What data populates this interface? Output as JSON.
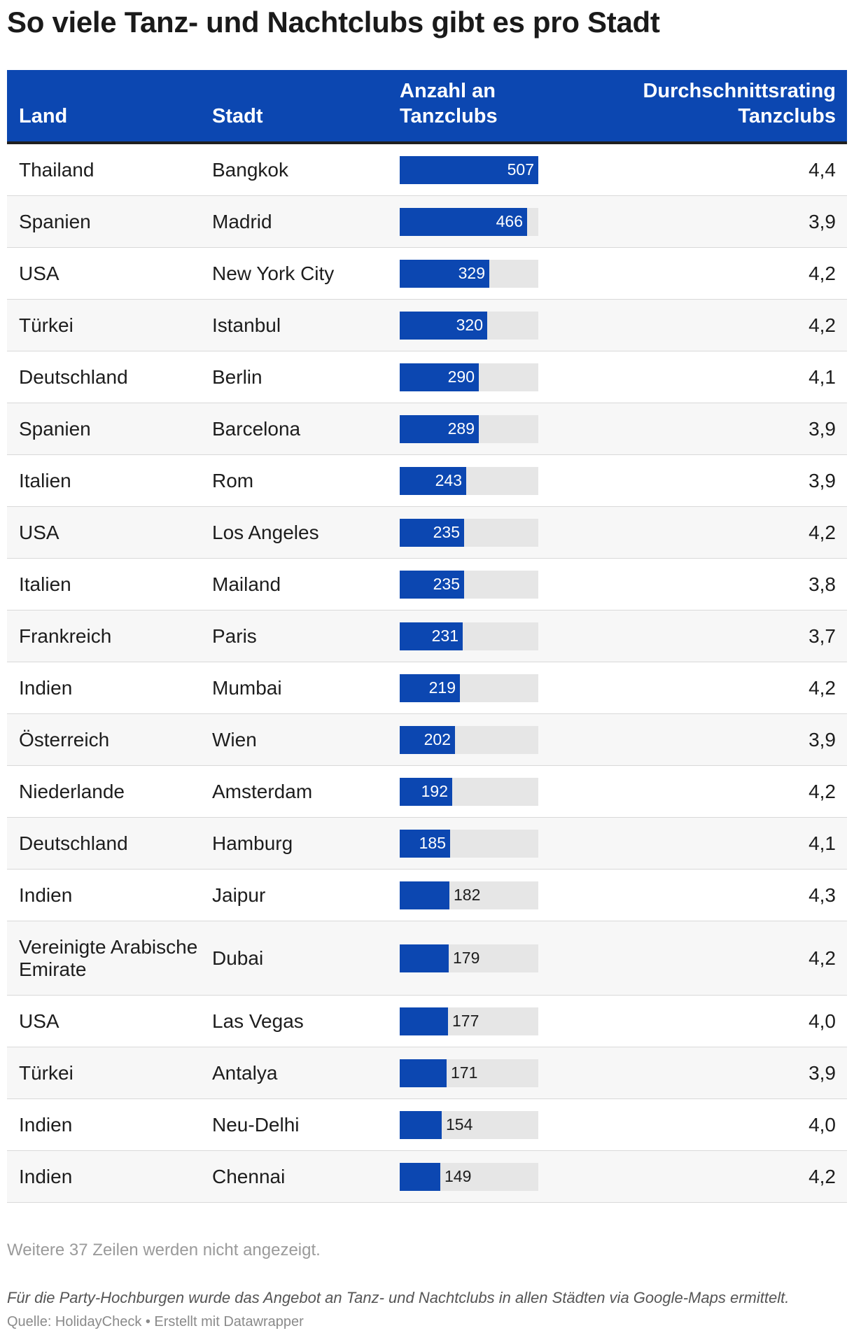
{
  "title": "So viele Tanz- und Nachtclubs gibt es pro Stadt",
  "header": {
    "land": "Land",
    "stadt": "Stadt",
    "anzahl_line1": "Anzahl an",
    "anzahl_line2": "Tanzclubs",
    "rating_line1": "Durchschnittsrating",
    "rating_line2": "Tanzclubs"
  },
  "colors": {
    "bar": "#0c47b1",
    "bar_track": "#e6e6e6",
    "header_bg": "#0c47b1"
  },
  "chart_data": {
    "type": "table",
    "bar_column": "Anzahl an Tanzclubs",
    "bar_max": 507,
    "rows": [
      {
        "land": "Thailand",
        "stadt": "Bangkok",
        "anzahl": 507,
        "rating": "4,4"
      },
      {
        "land": "Spanien",
        "stadt": "Madrid",
        "anzahl": 466,
        "rating": "3,9"
      },
      {
        "land": "USA",
        "stadt": "New York City",
        "anzahl": 329,
        "rating": "4,2"
      },
      {
        "land": "Türkei",
        "stadt": "Istanbul",
        "anzahl": 320,
        "rating": "4,2"
      },
      {
        "land": "Deutschland",
        "stadt": "Berlin",
        "anzahl": 290,
        "rating": "4,1"
      },
      {
        "land": "Spanien",
        "stadt": "Barcelona",
        "anzahl": 289,
        "rating": "3,9"
      },
      {
        "land": "Italien",
        "stadt": "Rom",
        "anzahl": 243,
        "rating": "3,9"
      },
      {
        "land": "USA",
        "stadt": "Los Angeles",
        "anzahl": 235,
        "rating": "4,2"
      },
      {
        "land": "Italien",
        "stadt": "Mailand",
        "anzahl": 235,
        "rating": "3,8"
      },
      {
        "land": "Frankreich",
        "stadt": "Paris",
        "anzahl": 231,
        "rating": "3,7"
      },
      {
        "land": "Indien",
        "stadt": "Mumbai",
        "anzahl": 219,
        "rating": "4,2"
      },
      {
        "land": "Österreich",
        "stadt": "Wien",
        "anzahl": 202,
        "rating": "3,9"
      },
      {
        "land": "Niederlande",
        "stadt": "Amsterdam",
        "anzahl": 192,
        "rating": "4,2"
      },
      {
        "land": "Deutschland",
        "stadt": "Hamburg",
        "anzahl": 185,
        "rating": "4,1"
      },
      {
        "land": "Indien",
        "stadt": "Jaipur",
        "anzahl": 182,
        "rating": "4,3"
      },
      {
        "land": "Vereinigte Arabische Emirate",
        "stadt": "Dubai",
        "anzahl": 179,
        "rating": "4,2"
      },
      {
        "land": "USA",
        "stadt": "Las Vegas",
        "anzahl": 177,
        "rating": "4,0"
      },
      {
        "land": "Türkei",
        "stadt": "Antalya",
        "anzahl": 171,
        "rating": "3,9"
      },
      {
        "land": "Indien",
        "stadt": "Neu-Delhi",
        "anzahl": 154,
        "rating": "4,0"
      },
      {
        "land": "Indien",
        "stadt": "Chennai",
        "anzahl": 149,
        "rating": "4,2"
      }
    ]
  },
  "footer": {
    "more_rows": "Weitere 37 Zeilen werden nicht angezeigt.",
    "note": "Für die Party-Hochburgen wurde das Angebot an Tanz- und Nachtclubs in allen Städten via Google-Maps ermittelt.",
    "source": "Quelle: HolidayCheck • Erstellt mit Datawrapper"
  }
}
